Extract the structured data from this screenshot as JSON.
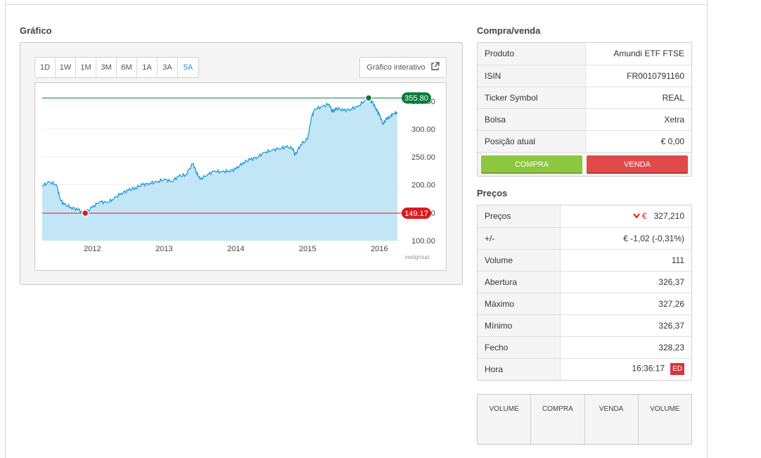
{
  "chart_section": {
    "title": "Gráfico",
    "ranges": [
      "1D",
      "1W",
      "1M",
      "3M",
      "6M",
      "1A",
      "3A",
      "5A"
    ],
    "active_range": "5A",
    "interactive_label": "Gráfico interativo",
    "watermark": "vwdgroup:"
  },
  "chart_data": {
    "type": "area",
    "x_labels": [
      "2012",
      "2013",
      "2014",
      "2015",
      "2016"
    ],
    "y_ticks": [
      "100.00",
      "150.00",
      "200.00",
      "250.00",
      "300.00",
      "350.00"
    ],
    "ylim": [
      100,
      375
    ],
    "x_range": [
      2011.3,
      2016.3
    ],
    "series": [
      {
        "values": [
          [
            2011.3,
            198
          ],
          [
            2011.4,
            205
          ],
          [
            2011.5,
            200
          ],
          [
            2011.55,
            175
          ],
          [
            2011.6,
            165
          ],
          [
            2011.7,
            160
          ],
          [
            2011.8,
            155
          ],
          [
            2011.9,
            149.17
          ],
          [
            2012.0,
            160
          ],
          [
            2012.1,
            170
          ],
          [
            2012.2,
            168
          ],
          [
            2012.3,
            175
          ],
          [
            2012.4,
            185
          ],
          [
            2012.5,
            190
          ],
          [
            2012.6,
            195
          ],
          [
            2012.7,
            200
          ],
          [
            2012.8,
            203
          ],
          [
            2012.9,
            205
          ],
          [
            2013.0,
            210
          ],
          [
            2013.1,
            206
          ],
          [
            2013.2,
            215
          ],
          [
            2013.3,
            218
          ],
          [
            2013.4,
            238
          ],
          [
            2013.45,
            223
          ],
          [
            2013.5,
            210
          ],
          [
            2013.6,
            218
          ],
          [
            2013.7,
            225
          ],
          [
            2013.8,
            223
          ],
          [
            2013.9,
            225
          ],
          [
            2014.0,
            228
          ],
          [
            2014.1,
            240
          ],
          [
            2014.2,
            245
          ],
          [
            2014.3,
            250
          ],
          [
            2014.4,
            258
          ],
          [
            2014.5,
            262
          ],
          [
            2014.6,
            265
          ],
          [
            2014.7,
            268
          ],
          [
            2014.8,
            265
          ],
          [
            2014.82,
            252
          ],
          [
            2014.9,
            272
          ],
          [
            2015.0,
            282
          ],
          [
            2015.05,
            320
          ],
          [
            2015.1,
            336
          ],
          [
            2015.2,
            340
          ],
          [
            2015.3,
            345
          ],
          [
            2015.35,
            330
          ],
          [
            2015.4,
            338
          ],
          [
            2015.5,
            333
          ],
          [
            2015.6,
            336
          ],
          [
            2015.7,
            340
          ],
          [
            2015.8,
            352
          ],
          [
            2015.85,
            355.8
          ],
          [
            2015.9,
            348
          ],
          [
            2015.95,
            338
          ],
          [
            2016.0,
            325
          ],
          [
            2016.05,
            310
          ],
          [
            2016.1,
            318
          ],
          [
            2016.15,
            322
          ],
          [
            2016.2,
            328
          ],
          [
            2016.25,
            330
          ]
        ]
      }
    ],
    "annotations": [
      {
        "label": "355.80",
        "value": 355.8,
        "color": "#0b7a3b"
      },
      {
        "label": "149.17",
        "value": 149.17,
        "color": "#d81b1b"
      }
    ],
    "grid": true
  },
  "trade_section": {
    "title": "Compra/venda",
    "rows": [
      {
        "label": "Produto",
        "value": "Amundi ETF FTSE"
      },
      {
        "label": "ISIN",
        "value": "FR0010791160"
      },
      {
        "label": "Ticker Symbol",
        "value": "REAL"
      },
      {
        "label": "Bolsa",
        "value": "Xetra"
      },
      {
        "label": "Posição atual",
        "value": "€ 0,00"
      }
    ],
    "buy_label": "COMPRA",
    "sell_label": "VENDA"
  },
  "prices_section": {
    "title": "Preços",
    "price_label": "Preços",
    "price_currency": "€",
    "price_value": "327,210",
    "change_label": "+/-",
    "change_value": "€ -1,02 (-0,31%)",
    "rows": [
      {
        "label": "Volume",
        "value": "111"
      },
      {
        "label": "Abertura",
        "value": "326,37"
      },
      {
        "label": "Máximo",
        "value": "327,26"
      },
      {
        "label": "Mínimo",
        "value": "326,37"
      },
      {
        "label": "Fecho",
        "value": "328,23"
      }
    ],
    "time_label": "Hora",
    "time_value": "16:36:17",
    "time_badge": "ED"
  },
  "order_book": {
    "columns": [
      "VOLUME",
      "COMPRA",
      "VENDA",
      "VOLUME"
    ]
  },
  "colors": {
    "accent": "#1e9bd7",
    "buy": "#8dc63f",
    "sell": "#e04a4a",
    "area_fill": "#c3e6f7",
    "line": "#1e9bd7"
  }
}
